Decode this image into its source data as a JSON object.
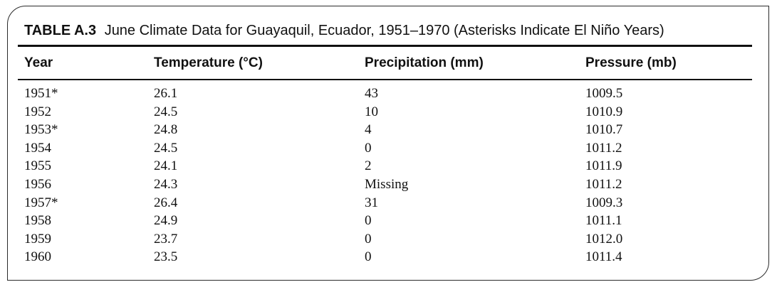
{
  "table": {
    "label": "TABLE A.3",
    "title": "June Climate Data for Guayaquil, Ecuador, 1951–1970 (Asterisks Indicate El Niño Years)",
    "columns": [
      "Year",
      "Temperature (°C)",
      "Precipitation (mm)",
      "Pressure (mb)"
    ],
    "rows": [
      [
        "1951*",
        "26.1",
        "43",
        "1009.5"
      ],
      [
        "1952",
        "24.5",
        "10",
        "1010.9"
      ],
      [
        "1953*",
        "24.8",
        "4",
        "1010.7"
      ],
      [
        "1954",
        "24.5",
        "0",
        "1011.2"
      ],
      [
        "1955",
        "24.1",
        "2",
        "1011.9"
      ],
      [
        "1956",
        "24.3",
        "Missing",
        "1011.2"
      ],
      [
        "1957*",
        "26.4",
        "31",
        "1009.3"
      ],
      [
        "1958",
        "24.9",
        "0",
        "1011.1"
      ],
      [
        "1959",
        "23.7",
        "0",
        "1012.0"
      ],
      [
        "1960",
        "23.5",
        "0",
        "1011.4"
      ]
    ]
  }
}
